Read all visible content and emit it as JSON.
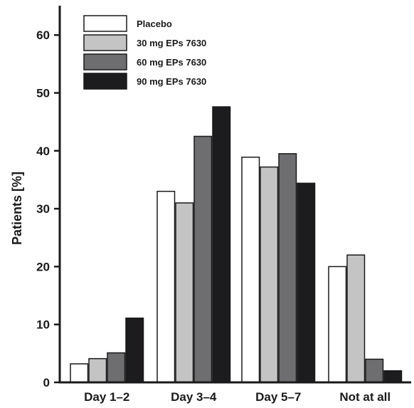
{
  "chart_data": {
    "type": "bar",
    "categories": [
      "Day 1–2",
      "Day 3–4",
      "Day 5–7",
      "Not at all"
    ],
    "series": [
      {
        "name": "Placebo",
        "values": [
          3.2,
          33.0,
          38.9,
          20.0
        ],
        "color": "#ffffff"
      },
      {
        "name": "30 mg EPs 7630",
        "values": [
          4.1,
          31.0,
          37.2,
          22.0
        ],
        "color": "#c4c4c4"
      },
      {
        "name": "60 mg EPs 7630",
        "values": [
          5.1,
          42.5,
          39.5,
          4.0
        ],
        "color": "#6e6e70"
      },
      {
        "name": "90 mg EPs 7630",
        "values": [
          11.1,
          47.6,
          34.4,
          2.0
        ],
        "color": "#1c1b1d"
      }
    ],
    "ylabel": "Patients [%]",
    "xlabel": "",
    "ylim": [
      0,
      65
    ],
    "yticks": [
      0,
      10,
      20,
      30,
      40,
      50,
      60
    ],
    "legend_position": "top-left",
    "grid": false
  }
}
